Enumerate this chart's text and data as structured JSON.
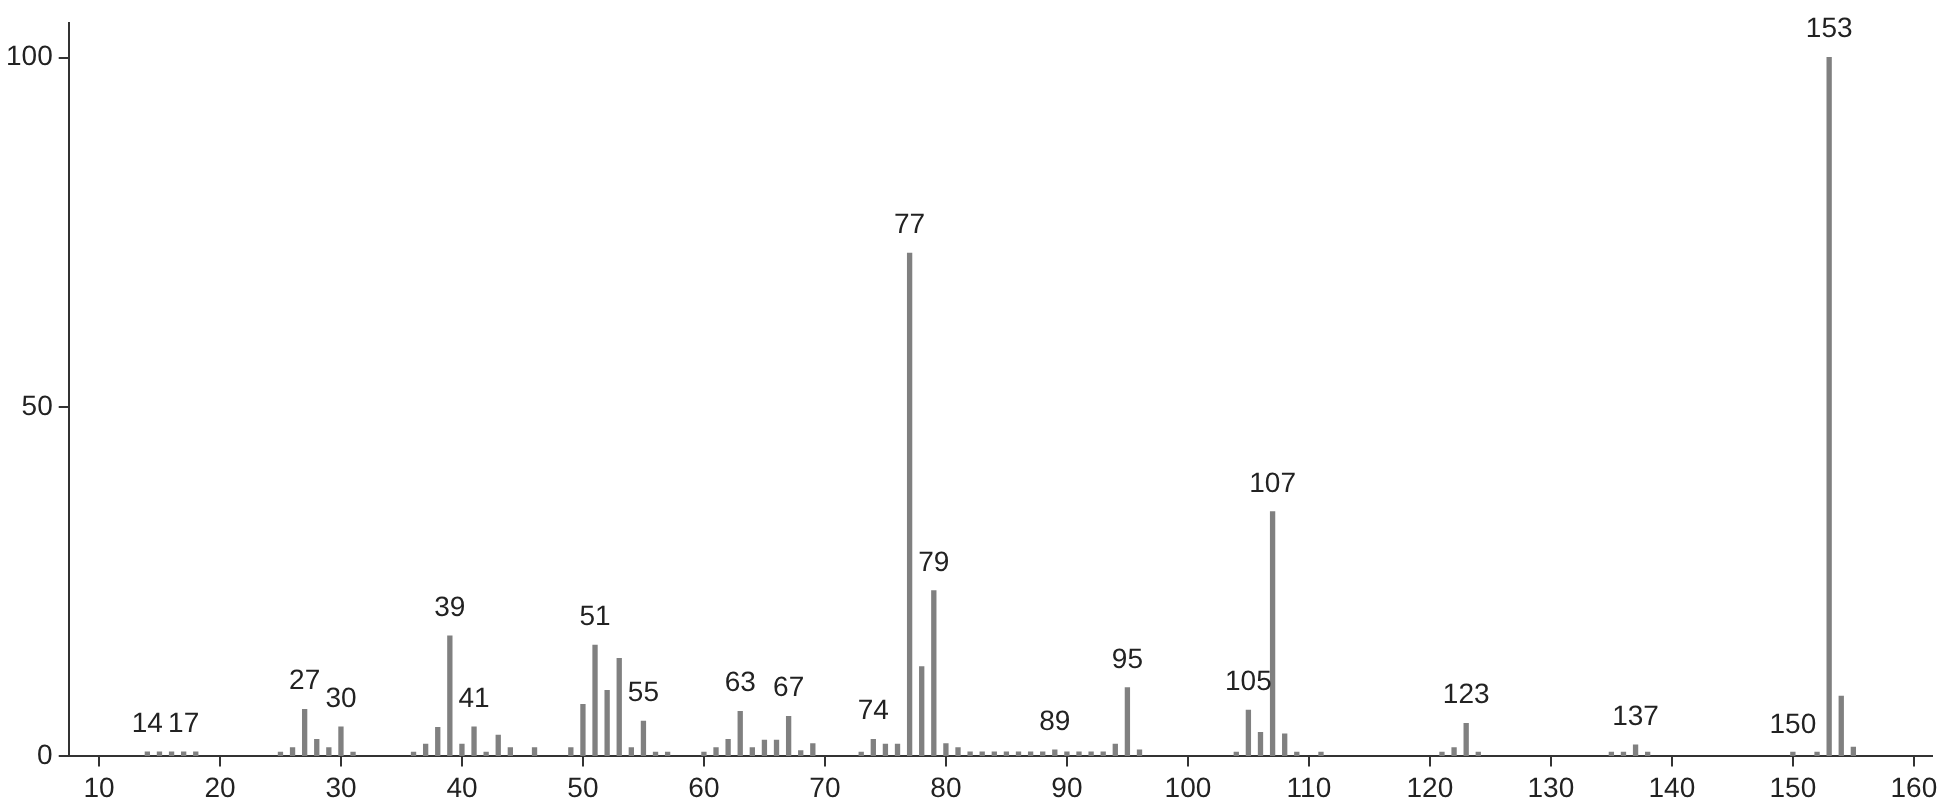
{
  "chart_data": {
    "type": "bar",
    "x": [
      14,
      15,
      16,
      17,
      18,
      25,
      26,
      27,
      28,
      29,
      30,
      31,
      36,
      37,
      38,
      39,
      40,
      41,
      42,
      43,
      44,
      46,
      49,
      50,
      51,
      52,
      53,
      54,
      55,
      56,
      57,
      60,
      61,
      62,
      63,
      64,
      65,
      66,
      67,
      68,
      69,
      73,
      74,
      75,
      76,
      77,
      78,
      79,
      80,
      81,
      82,
      83,
      84,
      85,
      86,
      87,
      88,
      89,
      90,
      91,
      92,
      93,
      94,
      95,
      96,
      104,
      105,
      106,
      107,
      108,
      109,
      111,
      121,
      122,
      123,
      124,
      135,
      136,
      137,
      138,
      150,
      152,
      153,
      154,
      155
    ],
    "values": [
      0.6,
      0.6,
      0.6,
      0.6,
      0.6,
      0.5,
      1.2,
      6.7,
      2.4,
      1.2,
      4.2,
      0.5,
      0.5,
      1.7,
      4.1,
      17.2,
      1.7,
      4.2,
      0.5,
      3.0,
      1.2,
      1.2,
      1.2,
      7.4,
      15.9,
      9.4,
      14.0,
      1.2,
      5.0,
      0.5,
      0.5,
      0.5,
      1.2,
      2.4,
      6.4,
      1.2,
      2.3,
      2.3,
      5.7,
      0.8,
      1.8,
      0.5,
      2.4,
      1.7,
      1.7,
      72,
      12.8,
      23.7,
      1.8,
      1.2,
      0.6,
      0.6,
      0.6,
      0.6,
      0.6,
      0.6,
      0.6,
      0.9,
      0.6,
      0.6,
      0.6,
      0.6,
      1.7,
      9.8,
      0.9,
      0.5,
      6.6,
      3.4,
      35.0,
      3.2,
      0.5,
      0.5,
      0.5,
      1.2,
      4.7,
      0.5,
      0.5,
      0.5,
      1.6,
      0.5,
      0.5,
      0.5,
      100,
      8.6,
      1.3
    ],
    "color": "#808080",
    "xlim": [
      7.5,
      161.5
    ],
    "xticks": [
      10,
      20,
      30,
      40,
      50,
      60,
      70,
      80,
      90,
      100,
      110,
      120,
      130,
      140,
      150,
      160
    ],
    "ylim": [
      0,
      105
    ],
    "yticks": [
      0,
      50,
      100
    ],
    "grid": false,
    "legend": false,
    "annotations": [
      {
        "text": "14",
        "x": 14,
        "y": 0.6
      },
      {
        "text": "17",
        "x": 17,
        "y": 0.6
      },
      {
        "text": "27",
        "x": 27,
        "y": 6.7
      },
      {
        "text": "30",
        "x": 30,
        "y": 4.2
      },
      {
        "text": "39",
        "x": 39,
        "y": 17.2
      },
      {
        "text": "41",
        "x": 41,
        "y": 4.2
      },
      {
        "text": "51",
        "x": 51,
        "y": 15.9
      },
      {
        "text": "55",
        "x": 55,
        "y": 5.0
      },
      {
        "text": "63",
        "x": 63,
        "y": 6.4
      },
      {
        "text": "67",
        "x": 67,
        "y": 5.7
      },
      {
        "text": "74",
        "x": 74,
        "y": 2.4
      },
      {
        "text": "77",
        "x": 77,
        "y": 72
      },
      {
        "text": "79",
        "x": 79,
        "y": 23.7
      },
      {
        "text": "89",
        "x": 89,
        "y": 0.9
      },
      {
        "text": "95",
        "x": 95,
        "y": 9.8
      },
      {
        "text": "105",
        "x": 105,
        "y": 6.6
      },
      {
        "text": "107",
        "x": 107,
        "y": 35.0
      },
      {
        "text": "123",
        "x": 123,
        "y": 4.7
      },
      {
        "text": "137",
        "x": 137,
        "y": 1.6
      },
      {
        "text": "150",
        "x": 150,
        "y": 0.5
      },
      {
        "text": "153",
        "x": 153,
        "y": 100
      }
    ]
  }
}
